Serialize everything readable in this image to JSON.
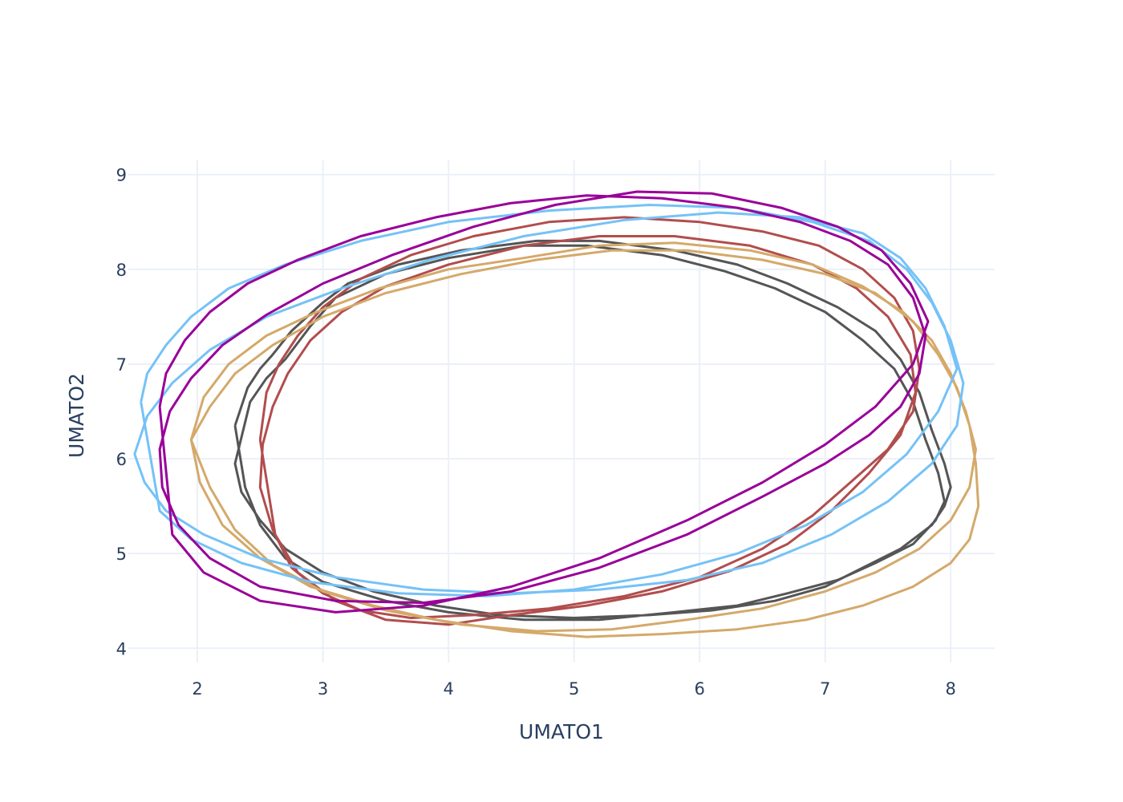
{
  "chart_data": {
    "type": "line",
    "title": "",
    "xlabel": "UMATO1",
    "ylabel": "UMATO2",
    "xlim": [
      1.45,
      8.35
    ],
    "ylim": [
      3.85,
      9.15
    ],
    "xticks": [
      2,
      3,
      4,
      5,
      6,
      7,
      8
    ],
    "yticks": [
      4,
      5,
      6,
      7,
      8,
      9
    ],
    "grid": true,
    "legend": "none",
    "series": [
      {
        "color": "#555555",
        "x": [
          2.3,
          2.4,
          2.5,
          2.6,
          2.75,
          3.0,
          3.2,
          3.6,
          4.1,
          4.7,
          5.2,
          5.8,
          6.3,
          6.7,
          7.1,
          7.4,
          7.6,
          7.75,
          7.85,
          7.95,
          8.0,
          7.95,
          7.85,
          7.6,
          7.3,
          7.0,
          6.6,
          6.1,
          5.6,
          5.0,
          4.4,
          3.9,
          3.4,
          3.0,
          2.7,
          2.5,
          2.35,
          2.3,
          2.42,
          2.55,
          2.7,
          2.9,
          3.1,
          3.5,
          4.0,
          4.6,
          5.1,
          5.7,
          6.2,
          6.6,
          7.0,
          7.3,
          7.55,
          7.7,
          7.8,
          7.9,
          7.95,
          7.88,
          7.7,
          7.4,
          7.1,
          6.7,
          6.3,
          5.8,
          5.2,
          4.6,
          4.0,
          3.5,
          3.0,
          2.7,
          2.5,
          2.38,
          2.3
        ],
        "y": [
          6.35,
          6.75,
          6.95,
          7.1,
          7.35,
          7.65,
          7.85,
          8.05,
          8.2,
          8.3,
          8.3,
          8.2,
          8.05,
          7.85,
          7.6,
          7.35,
          7.05,
          6.7,
          6.3,
          5.95,
          5.7,
          5.5,
          5.3,
          5.05,
          4.85,
          4.65,
          4.5,
          4.4,
          4.35,
          4.32,
          4.35,
          4.45,
          4.6,
          4.8,
          5.05,
          5.35,
          5.65,
          5.95,
          6.6,
          6.85,
          7.05,
          7.4,
          7.7,
          7.95,
          8.12,
          8.25,
          8.25,
          8.15,
          7.98,
          7.8,
          7.55,
          7.25,
          6.95,
          6.6,
          6.2,
          5.85,
          5.55,
          5.35,
          5.1,
          4.9,
          4.72,
          4.58,
          4.45,
          4.38,
          4.3,
          4.3,
          4.38,
          4.5,
          4.7,
          4.95,
          5.3,
          5.7,
          6.35
        ]
      },
      {
        "color": "#b24d4d",
        "x": [
          2.5,
          2.55,
          2.65,
          2.8,
          3.0,
          3.3,
          3.7,
          4.2,
          4.8,
          5.4,
          6.0,
          6.5,
          6.95,
          7.3,
          7.55,
          7.7,
          7.75,
          7.7,
          7.5,
          7.2,
          6.9,
          6.5,
          6.0,
          5.4,
          4.8,
          4.2,
          3.7,
          3.3,
          3.0,
          2.75,
          2.6,
          2.5,
          2.52,
          2.6,
          2.72,
          2.9,
          3.15,
          3.5,
          4.0,
          4.6,
          5.2,
          5.8,
          6.4,
          6.9,
          7.25,
          7.5,
          7.68,
          7.72,
          7.6,
          7.35,
          7.05,
          6.7,
          6.25,
          5.7,
          5.1,
          4.5,
          4.0,
          3.5,
          3.1,
          2.8,
          2.62,
          2.5
        ],
        "y": [
          6.2,
          6.7,
          7.0,
          7.3,
          7.6,
          7.9,
          8.15,
          8.35,
          8.5,
          8.55,
          8.5,
          8.4,
          8.25,
          8.0,
          7.7,
          7.35,
          6.95,
          6.5,
          6.1,
          5.75,
          5.4,
          5.05,
          4.75,
          4.55,
          4.42,
          4.35,
          4.32,
          4.4,
          4.58,
          4.85,
          5.25,
          5.7,
          6.15,
          6.55,
          6.9,
          7.25,
          7.55,
          7.82,
          8.05,
          8.25,
          8.35,
          8.35,
          8.25,
          8.05,
          7.8,
          7.5,
          7.1,
          6.7,
          6.25,
          5.85,
          5.45,
          5.1,
          4.82,
          4.6,
          4.45,
          4.35,
          4.25,
          4.3,
          4.5,
          4.8,
          5.2,
          6.2
        ]
      },
      {
        "color": "#d4a96a",
        "x": [
          1.95,
          2.1,
          2.3,
          2.6,
          3.0,
          3.5,
          4.1,
          4.7,
          5.3,
          5.9,
          6.5,
          7.0,
          7.4,
          7.7,
          7.9,
          8.05,
          8.15,
          8.2,
          8.22,
          8.15,
          8.0,
          7.7,
          7.3,
          6.85,
          6.3,
          5.7,
          5.1,
          4.5,
          3.9,
          3.4,
          2.9,
          2.5,
          2.2,
          2.02,
          1.95,
          2.05,
          2.25,
          2.55,
          2.95,
          3.45,
          4.0,
          4.6,
          5.2,
          5.8,
          6.4,
          6.9,
          7.3,
          7.62,
          7.85,
          8.0,
          8.12,
          8.2,
          8.15,
          8.0,
          7.75,
          7.4,
          7.0,
          6.5,
          5.9,
          5.3,
          4.7,
          4.1,
          3.5,
          3.0,
          2.6,
          2.3,
          2.1,
          1.95
        ],
        "y": [
          6.2,
          6.55,
          6.9,
          7.2,
          7.5,
          7.75,
          7.95,
          8.1,
          8.2,
          8.2,
          8.1,
          7.95,
          7.75,
          7.45,
          7.1,
          6.75,
          6.35,
          5.95,
          5.5,
          5.15,
          4.9,
          4.65,
          4.45,
          4.3,
          4.2,
          4.15,
          4.12,
          4.18,
          4.3,
          4.45,
          4.65,
          4.95,
          5.3,
          5.75,
          6.2,
          6.65,
          7.0,
          7.3,
          7.55,
          7.8,
          8.0,
          8.12,
          8.25,
          8.28,
          8.2,
          8.05,
          7.82,
          7.55,
          7.25,
          6.9,
          6.5,
          6.1,
          5.7,
          5.35,
          5.05,
          4.8,
          4.6,
          4.42,
          4.3,
          4.2,
          4.18,
          4.25,
          4.4,
          4.6,
          4.88,
          5.25,
          5.7,
          6.2
        ]
      },
      {
        "color": "#75c2f6",
        "x": [
          1.55,
          1.6,
          1.75,
          1.95,
          2.25,
          2.7,
          3.3,
          4.0,
          4.8,
          5.6,
          6.3,
          6.9,
          7.35,
          7.65,
          7.85,
          8.0,
          8.1,
          8.05,
          7.85,
          7.5,
          7.05,
          6.5,
          5.9,
          5.2,
          4.5,
          3.8,
          3.1,
          2.5,
          2.05,
          1.75,
          1.58,
          1.5,
          1.6,
          1.8,
          2.1,
          2.55,
          3.15,
          3.85,
          4.6,
          5.4,
          6.15,
          6.8,
          7.3,
          7.6,
          7.8,
          7.95,
          8.05,
          7.9,
          7.65,
          7.3,
          6.85,
          6.3,
          5.7,
          5.0,
          4.3,
          3.6,
          2.9,
          2.35,
          1.95,
          1.7,
          1.55
        ],
        "y": [
          6.6,
          6.9,
          7.2,
          7.5,
          7.8,
          8.05,
          8.3,
          8.5,
          8.62,
          8.68,
          8.65,
          8.5,
          8.3,
          8.0,
          7.65,
          7.25,
          6.8,
          6.35,
          5.95,
          5.55,
          5.2,
          4.9,
          4.72,
          4.62,
          4.58,
          4.62,
          4.75,
          4.95,
          5.2,
          5.45,
          5.75,
          6.05,
          6.45,
          6.8,
          7.15,
          7.5,
          7.8,
          8.1,
          8.35,
          8.52,
          8.6,
          8.55,
          8.38,
          8.12,
          7.8,
          7.4,
          6.95,
          6.5,
          6.05,
          5.65,
          5.3,
          5.0,
          4.78,
          4.62,
          4.55,
          4.58,
          4.7,
          4.9,
          5.15,
          5.45,
          6.6
        ]
      },
      {
        "color": "#990099",
        "x": [
          1.7,
          1.75,
          1.9,
          2.1,
          2.4,
          2.8,
          3.3,
          3.9,
          4.5,
          5.1,
          5.7,
          6.3,
          6.8,
          7.2,
          7.5,
          7.7,
          7.8,
          7.75,
          7.6,
          7.35,
          7.0,
          6.5,
          5.9,
          5.2,
          4.5,
          3.8,
          3.1,
          2.5,
          2.1,
          1.85,
          1.72,
          1.7,
          1.78,
          1.95,
          2.2,
          2.55,
          3.0,
          3.55,
          4.2,
          4.85,
          5.5,
          6.1,
          6.65,
          7.1,
          7.45,
          7.68,
          7.82,
          7.7,
          7.4,
          7.0,
          6.5,
          5.9,
          5.2,
          4.5,
          3.8,
          3.1,
          2.5,
          2.05,
          1.8,
          1.7
        ],
        "y": [
          6.55,
          6.9,
          7.25,
          7.55,
          7.85,
          8.1,
          8.35,
          8.55,
          8.7,
          8.78,
          8.75,
          8.65,
          8.5,
          8.3,
          8.05,
          7.7,
          7.3,
          6.9,
          6.55,
          6.25,
          5.95,
          5.6,
          5.2,
          4.85,
          4.6,
          4.48,
          4.5,
          4.65,
          4.95,
          5.3,
          5.7,
          6.1,
          6.5,
          6.85,
          7.2,
          7.52,
          7.85,
          8.15,
          8.45,
          8.68,
          8.82,
          8.8,
          8.65,
          8.45,
          8.2,
          7.85,
          7.45,
          7.0,
          6.55,
          6.15,
          5.75,
          5.35,
          4.95,
          4.65,
          4.45,
          4.38,
          4.5,
          4.8,
          5.2,
          6.55
        ]
      }
    ]
  }
}
